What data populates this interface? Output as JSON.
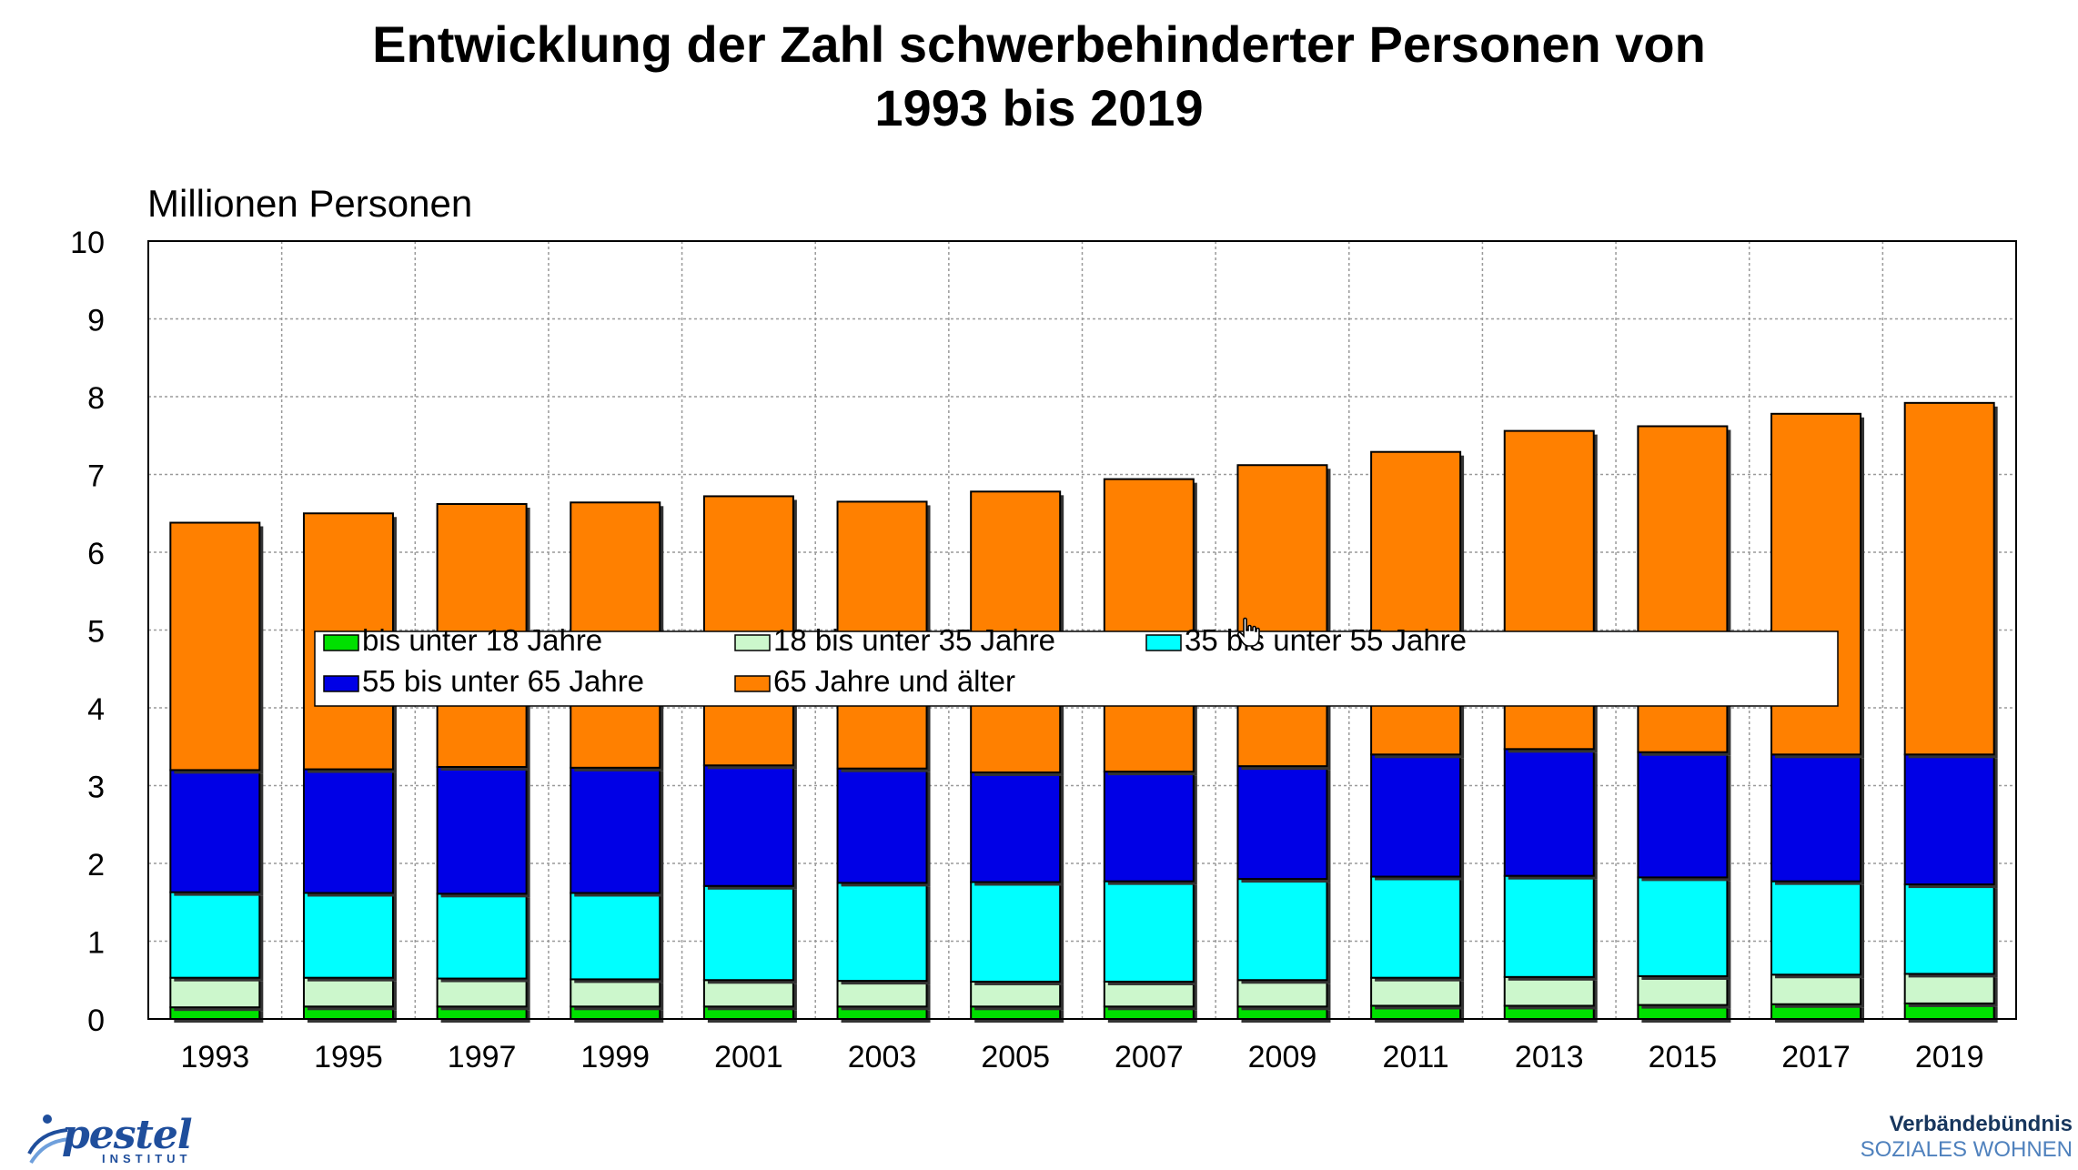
{
  "chart_data": {
    "type": "bar",
    "stacked": true,
    "title_lines": [
      "Entwicklung der Zahl schwerbehinderter Personen von",
      "1993 bis 2019"
    ],
    "ylabel": "Millionen Personen",
    "ylim": [
      0,
      10
    ],
    "yticks": [
      0,
      1,
      2,
      3,
      4,
      5,
      6,
      7,
      8,
      9,
      10
    ],
    "grid": true,
    "legend_position": "center",
    "categories": [
      "1993",
      "1995",
      "1997",
      "1999",
      "2001",
      "2003",
      "2005",
      "2007",
      "2009",
      "2011",
      "2013",
      "2015",
      "2017",
      "2019"
    ],
    "series": [
      {
        "name": "bis unter 18 Jahre",
        "color": "#00e000",
        "values": [
          0.15,
          0.16,
          0.16,
          0.16,
          0.16,
          0.16,
          0.16,
          0.16,
          0.16,
          0.17,
          0.17,
          0.18,
          0.19,
          0.2
        ]
      },
      {
        "name": "18 bis unter 35 Jahre",
        "color": "#ccf7cc",
        "values": [
          0.38,
          0.37,
          0.36,
          0.35,
          0.34,
          0.33,
          0.32,
          0.32,
          0.34,
          0.36,
          0.37,
          0.37,
          0.38,
          0.38
        ]
      },
      {
        "name": "35 bis unter 55 Jahre",
        "color": "#00ffff",
        "values": [
          1.1,
          1.09,
          1.09,
          1.11,
          1.21,
          1.26,
          1.28,
          1.29,
          1.3,
          1.3,
          1.3,
          1.27,
          1.2,
          1.15
        ]
      },
      {
        "name": "55 bis unter 65 Jahre",
        "color": "#0000e6",
        "values": [
          1.57,
          1.59,
          1.63,
          1.61,
          1.55,
          1.47,
          1.41,
          1.41,
          1.45,
          1.57,
          1.63,
          1.61,
          1.63,
          1.67
        ]
      },
      {
        "name": "65 Jahre und älter",
        "color": "#ff8000",
        "values": [
          3.18,
          3.29,
          3.38,
          3.41,
          3.46,
          3.43,
          3.61,
          3.76,
          3.87,
          3.89,
          4.09,
          4.19,
          4.38,
          4.52
        ]
      }
    ]
  },
  "branding": {
    "left_logo": "pestel",
    "left_logo_sub": "INSTITUT",
    "right_line1": "Verbändebündnis",
    "right_line2": "SOZIALES WOHNEN"
  }
}
